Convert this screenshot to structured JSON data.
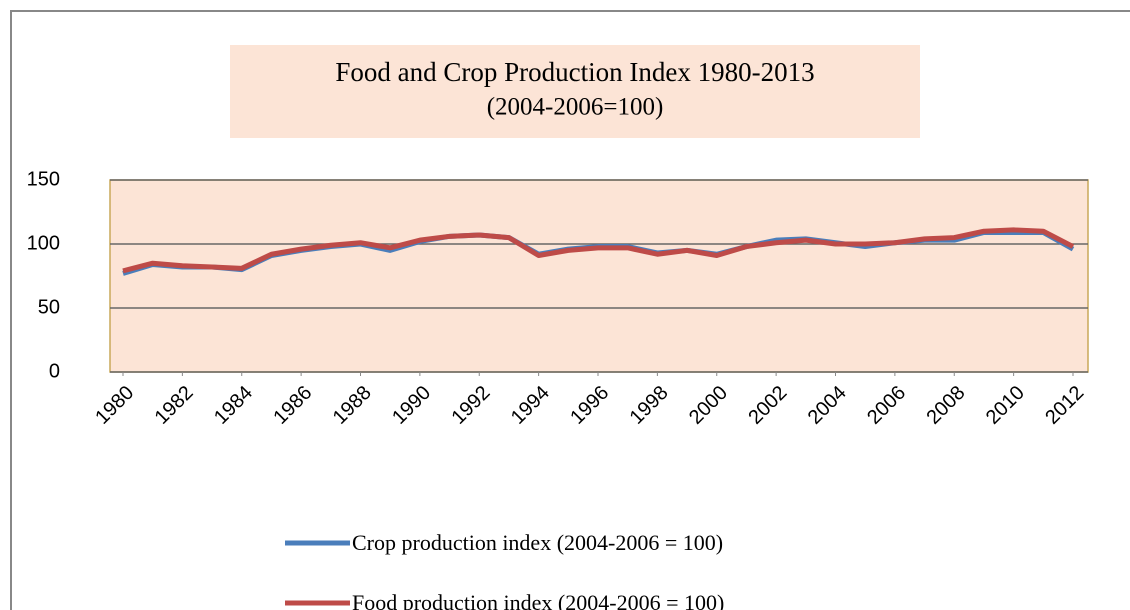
{
  "chart_data": {
    "type": "line",
    "title": "Food and Crop Production Index 1980-2013",
    "subtitle": "(2004-2006=100)",
    "x": [
      1980,
      1981,
      1982,
      1983,
      1984,
      1985,
      1986,
      1987,
      1988,
      1989,
      1990,
      1991,
      1992,
      1993,
      1994,
      1995,
      1996,
      1997,
      1998,
      1999,
      2000,
      2001,
      2002,
      2003,
      2004,
      2005,
      2006,
      2007,
      2008,
      2009,
      2010,
      2011,
      2012
    ],
    "series": [
      {
        "name": "Crop production index (2004-2006 = 100)",
        "color": "#4a7ebb",
        "values": [
          77,
          84,
          82,
          82,
          80,
          91,
          95,
          98,
          100,
          95,
          102,
          106,
          107,
          105,
          92,
          96,
          98,
          98,
          93,
          95,
          92,
          98,
          103,
          104,
          101,
          98,
          101,
          103,
          103,
          109,
          109,
          109,
          96
        ]
      },
      {
        "name": "Food production index (2004-2006 = 100)",
        "color": "#be4b48",
        "values": [
          79,
          85,
          83,
          82,
          81,
          92,
          96,
          99,
          101,
          97,
          103,
          106,
          107,
          105,
          91,
          95,
          97,
          97,
          92,
          95,
          91,
          98,
          101,
          103,
          100,
          100,
          101,
          104,
          105,
          110,
          111,
          110,
          98
        ]
      }
    ],
    "xlim": [
      1980,
      2012
    ],
    "xticks": [
      1980,
      1982,
      1984,
      1986,
      1988,
      1990,
      1992,
      1994,
      1996,
      1998,
      2000,
      2002,
      2004,
      2006,
      2008,
      2010,
      2012
    ],
    "ylim": [
      0,
      150
    ],
    "yticks": [
      0,
      50,
      100,
      150
    ],
    "grid": true
  }
}
